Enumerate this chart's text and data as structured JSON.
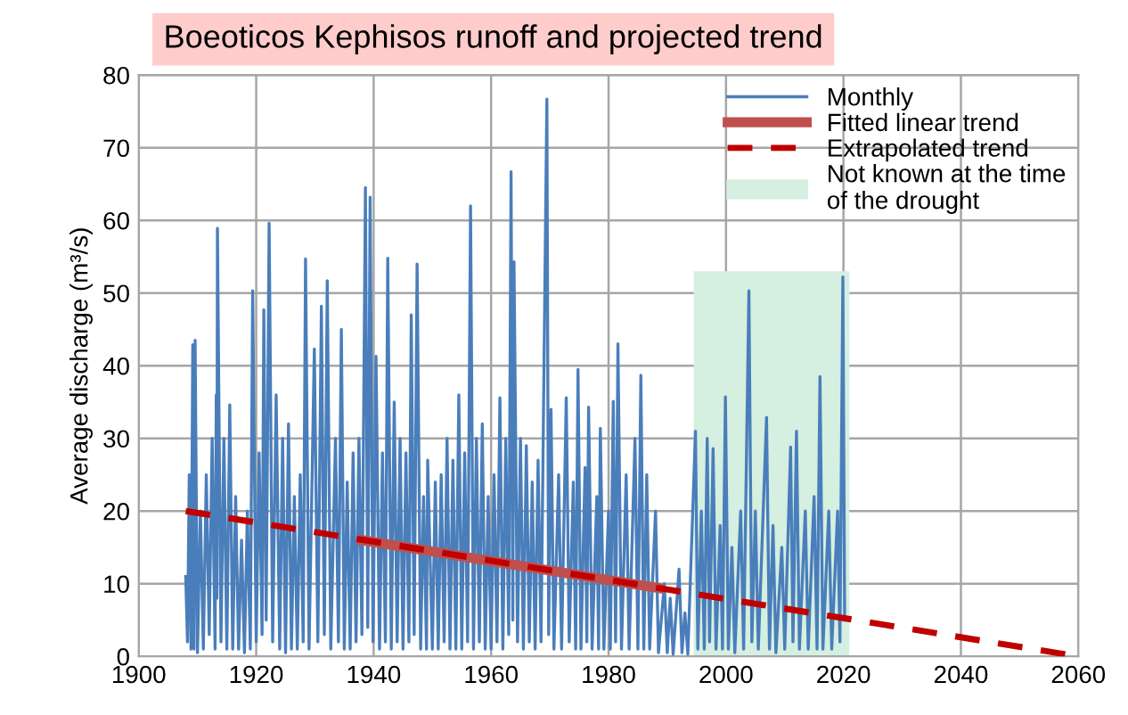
{
  "chart_data": {
    "type": "line",
    "title": "Boeoticos Kephisos runoff and projected trend",
    "ylabel": "Average discharge (m³/s)",
    "xlim": [
      1900,
      2060
    ],
    "xticks": [
      1900,
      1920,
      1940,
      1960,
      1980,
      2000,
      2020,
      2040,
      2060
    ],
    "ylim": [
      0,
      80
    ],
    "yticks": [
      0,
      10,
      20,
      30,
      40,
      50,
      60,
      70,
      80
    ],
    "grid": true,
    "legend": "top right",
    "series": [
      {
        "name": "Monthly",
        "color": "#4a7ebb",
        "line_style": "solid",
        "x": [
          1908.0,
          1908.3,
          1908.6,
          1908.9,
          1909.2,
          1909.4,
          1909.6,
          1910.0,
          1910.5,
          1911,
          1911.5,
          1912,
          1912.5,
          1913,
          1913.2,
          1913.3,
          1913.4,
          1914,
          1914.5,
          1915,
          1915.5,
          1916,
          1916.5,
          1917,
          1917.5,
          1918,
          1918.5,
          1919,
          1919.4,
          1920,
          1920.5,
          1921,
          1921.3,
          1921.7,
          1922.2,
          1922.8,
          1923.4,
          1924,
          1924.5,
          1925,
          1925.5,
          1926,
          1926.5,
          1927,
          1927.5,
          1928,
          1928.4,
          1929,
          1929.9,
          1930.5,
          1931.1,
          1931.6,
          1932.1,
          1932.7,
          1933.5,
          1934,
          1934.5,
          1935,
          1935.5,
          1936,
          1936.5,
          1937,
          1937.5,
          1938,
          1938.6,
          1939,
          1939.4,
          1939.9,
          1940.4,
          1941,
          1941.5,
          1942,
          1942.4,
          1943,
          1943.5,
          1944,
          1944.5,
          1945,
          1945.5,
          1946,
          1946.4,
          1946.9,
          1947.4,
          1948,
          1948.5,
          1949,
          1949.2,
          1950,
          1950.5,
          1951,
          1951.5,
          1952,
          1952.5,
          1953,
          1953.5,
          1954,
          1954.5,
          1955,
          1955.5,
          1956,
          1956.5,
          1957,
          1957.5,
          1958,
          1958.5,
          1959,
          1959.5,
          1960,
          1960.5,
          1961,
          1961.5,
          1962,
          1962.5,
          1963,
          1963.4,
          1963.7,
          1963.9,
          1964.5,
          1965,
          1965.5,
          1966,
          1966.5,
          1967,
          1967.5,
          1968,
          1968.5,
          1969.5,
          1969.8,
          1970.2,
          1970.7,
          1971.5,
          1972,
          1972.8,
          1973.3,
          1974,
          1974.4,
          1974.8,
          1975.3,
          1976,
          1976.3,
          1976.6,
          1977.2,
          1978,
          1978.3,
          1978.6,
          1979.2,
          1980,
          1980.3,
          1980.8,
          1981.2,
          1981.6,
          1982.2,
          1983,
          1983.5,
          1984.5,
          1985,
          1985.5,
          1986,
          1986.5,
          1987,
          1988,
          1988.5,
          1989.5,
          1990,
          1990.5,
          1991,
          1992,
          1992.5,
          1993,
          1993.5,
          1994.8,
          1995.2,
          1995.8,
          1996.3,
          1996.8,
          1997.2,
          1997.8,
          1998.3,
          1999,
          1999.4,
          1999.9,
          2000.4,
          2001,
          2001.5,
          2002.5,
          2003,
          2003.9,
          2004.4,
          2005,
          2005.5,
          2006.9,
          2007.4,
          2008,
          2008.5,
          2009.5,
          2010,
          2011,
          2011.4,
          2012,
          2012.5,
          2013.5,
          2014,
          2015,
          2015.5,
          2016,
          2016.5,
          2017.5,
          2018,
          2019,
          2019.4,
          2019.9,
          2020.2
        ],
        "values": [
          11,
          2,
          25,
          1,
          42.9,
          1,
          43.5,
          0.5,
          20,
          1,
          25,
          3,
          30,
          1,
          36,
          8,
          58.9,
          2,
          30,
          1,
          34.6,
          1,
          22,
          1,
          16,
          0.5,
          20,
          1,
          50.3,
          2,
          28,
          3,
          47.7,
          5,
          59.6,
          2,
          36,
          1,
          30,
          0.5,
          32,
          1,
          22,
          1,
          25,
          2,
          54.7,
          1,
          42.3,
          2,
          48.2,
          3,
          51.7,
          1,
          30,
          2,
          45,
          1,
          24,
          1,
          28,
          2,
          30,
          3,
          64.5,
          4,
          63.2,
          2,
          41.3,
          1,
          28,
          2,
          54.8,
          1,
          35,
          2,
          30,
          1,
          28,
          2,
          47,
          3,
          54,
          1,
          22,
          1,
          27,
          1,
          24,
          1,
          25,
          2,
          30,
          1,
          27,
          1,
          36,
          1,
          28,
          2,
          62,
          1,
          30,
          2,
          32,
          1,
          22,
          1,
          25,
          2,
          35.6,
          1,
          30,
          3,
          66.7,
          5,
          54.3,
          2,
          30,
          1,
          29,
          2,
          24,
          1,
          27,
          2,
          76.7,
          3,
          34,
          1,
          25,
          1,
          35.6,
          2,
          24,
          1,
          39.5,
          1,
          26,
          2,
          34.3,
          1,
          22,
          1,
          31.4,
          1,
          20,
          1,
          35.1,
          2,
          43,
          1,
          25,
          1,
          30,
          1,
          38.7,
          1,
          25,
          1,
          20,
          0.5,
          10,
          0.5,
          8,
          0.3,
          12,
          0.5,
          6,
          0.3,
          31,
          1,
          20,
          1,
          30,
          2,
          28.6,
          1,
          18,
          1,
          35.7,
          1,
          15,
          0.5,
          20,
          1,
          50.3,
          2,
          20,
          1,
          32.9,
          1,
          18,
          0.5,
          15,
          1,
          28.8,
          2,
          31,
          1,
          20,
          1,
          22,
          1,
          38.5,
          1,
          20,
          1,
          20,
          2,
          52.2,
          5
        ]
      },
      {
        "name": "Fitted linear trend",
        "color": "#c0504d",
        "line_style": "solid",
        "x": [
          1938,
          1988.5
        ],
        "values": [
          16,
          9.4
        ]
      },
      {
        "name": "Extrapolated trend",
        "color": "#c00000",
        "line_style": "dashed",
        "x": [
          1908,
          2060
        ],
        "values": [
          20,
          0
        ]
      },
      {
        "name": "Not known at the time\nof the drought",
        "type": "area",
        "color": "#d5efe0",
        "x": [
          1994.5,
          2021
        ],
        "values": [
          53,
          53
        ]
      }
    ]
  }
}
